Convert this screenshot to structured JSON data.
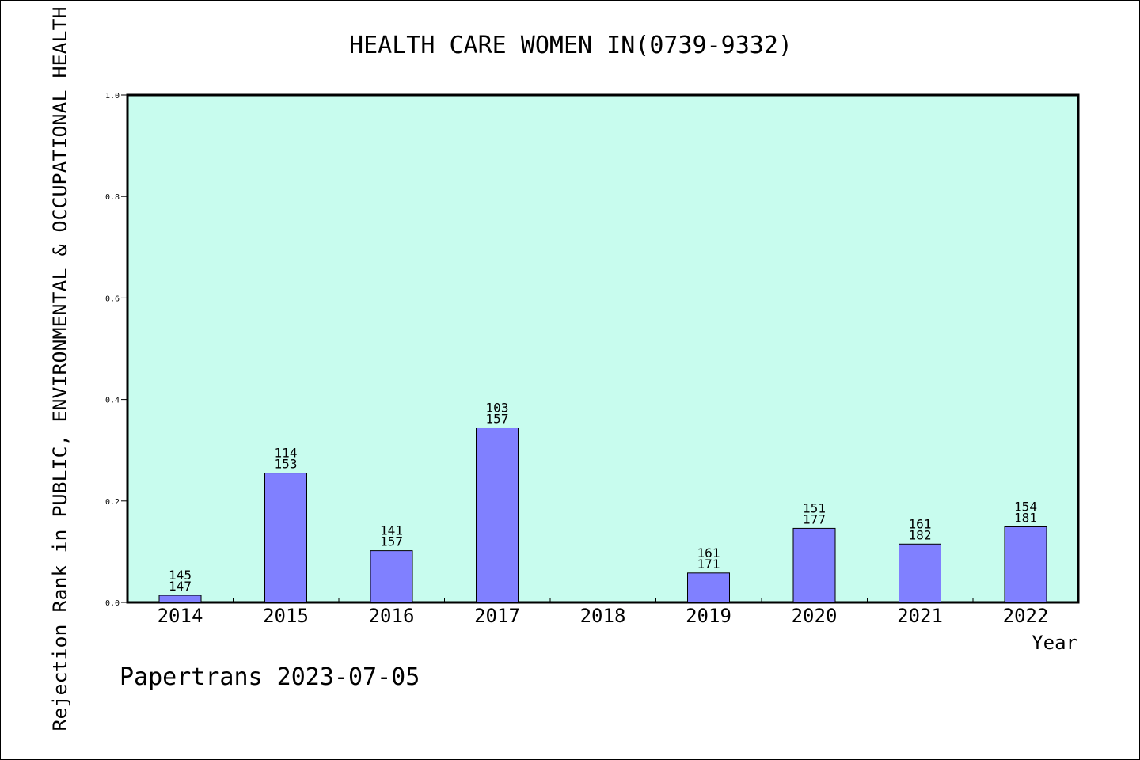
{
  "chart_data": {
    "type": "bar",
    "title": "HEALTH CARE WOMEN IN(0739-9332)",
    "xlabel": "Year",
    "ylabel": "Rejection Rank in PUBLIC, ENVIRONMENTAL & OCCUPATIONAL HEALTH",
    "footer": "Papertrans 2023-07-05",
    "ylim": [
      0,
      1.0
    ],
    "yticks": [
      "0.0",
      "0.2",
      "0.4",
      "0.6",
      "0.8",
      "1.0"
    ],
    "categories": [
      "2014",
      "2015",
      "2016",
      "2017",
      "2018",
      "2019",
      "2020",
      "2021",
      "2022"
    ],
    "values": [
      0.014,
      0.255,
      0.102,
      0.344,
      0,
      0.058,
      0.146,
      0.115,
      0.149
    ],
    "labels_top": [
      "145",
      "114",
      "141",
      "103",
      "",
      "161",
      "151",
      "161",
      "154"
    ],
    "labels_bottom": [
      "147",
      "153",
      "157",
      "157",
      "",
      "171",
      "177",
      "182",
      "181"
    ],
    "plot_background": "#c8fcee",
    "bar_color": "#8080ff",
    "grid": false
  }
}
